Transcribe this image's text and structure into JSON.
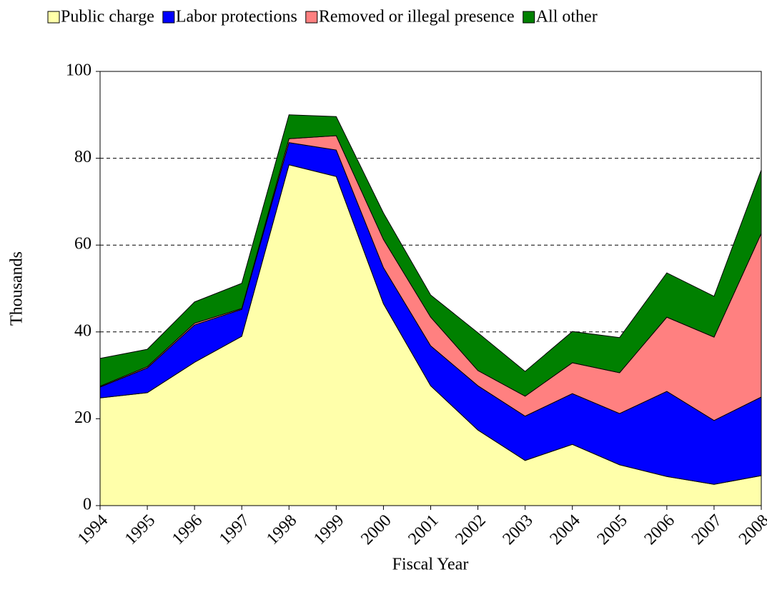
{
  "chart_data": {
    "type": "area",
    "stacked": true,
    "x_label": "Fiscal Year",
    "y_label": "Thousands",
    "categories": [
      "1994",
      "1995",
      "1996",
      "1997",
      "1998",
      "1999",
      "2000",
      "2001",
      "2002",
      "2003",
      "2004",
      "2005",
      "2006",
      "2007",
      "2008"
    ],
    "series": [
      {
        "name": "Public charge",
        "color": "#ffffaa",
        "values": [
          24.8,
          26,
          33,
          39,
          78.5,
          75.8,
          46.5,
          27.6,
          17.4,
          10.4,
          14.1,
          9.4,
          6.7,
          4.9,
          6.9
        ]
      },
      {
        "name": "Labor protections",
        "color": "#0000ff",
        "values": [
          2.5,
          5.7,
          8.6,
          6.2,
          5.1,
          6.1,
          8.3,
          9.2,
          10.2,
          10.2,
          11.7,
          11.8,
          19.6,
          14.7,
          18.1
        ]
      },
      {
        "name": "Removed or illegal presence",
        "color": "#ff8080",
        "values": [
          0.2,
          0.3,
          0.4,
          0.2,
          0.9,
          3.3,
          6.5,
          6.6,
          3.5,
          4.6,
          7.1,
          9.4,
          17.1,
          19.2,
          37.7
        ]
      },
      {
        "name": "All other",
        "color": "#008000",
        "values": [
          6.4,
          4,
          4.9,
          5.8,
          5.5,
          4.4,
          6.1,
          5.1,
          8.7,
          5.7,
          7.2,
          8.1,
          10.2,
          9.4,
          14.6
        ]
      }
    ],
    "ylim": [
      0,
      100
    ],
    "yticks": [
      0,
      20,
      40,
      60,
      80,
      100
    ],
    "grid": true,
    "legend": "top"
  }
}
